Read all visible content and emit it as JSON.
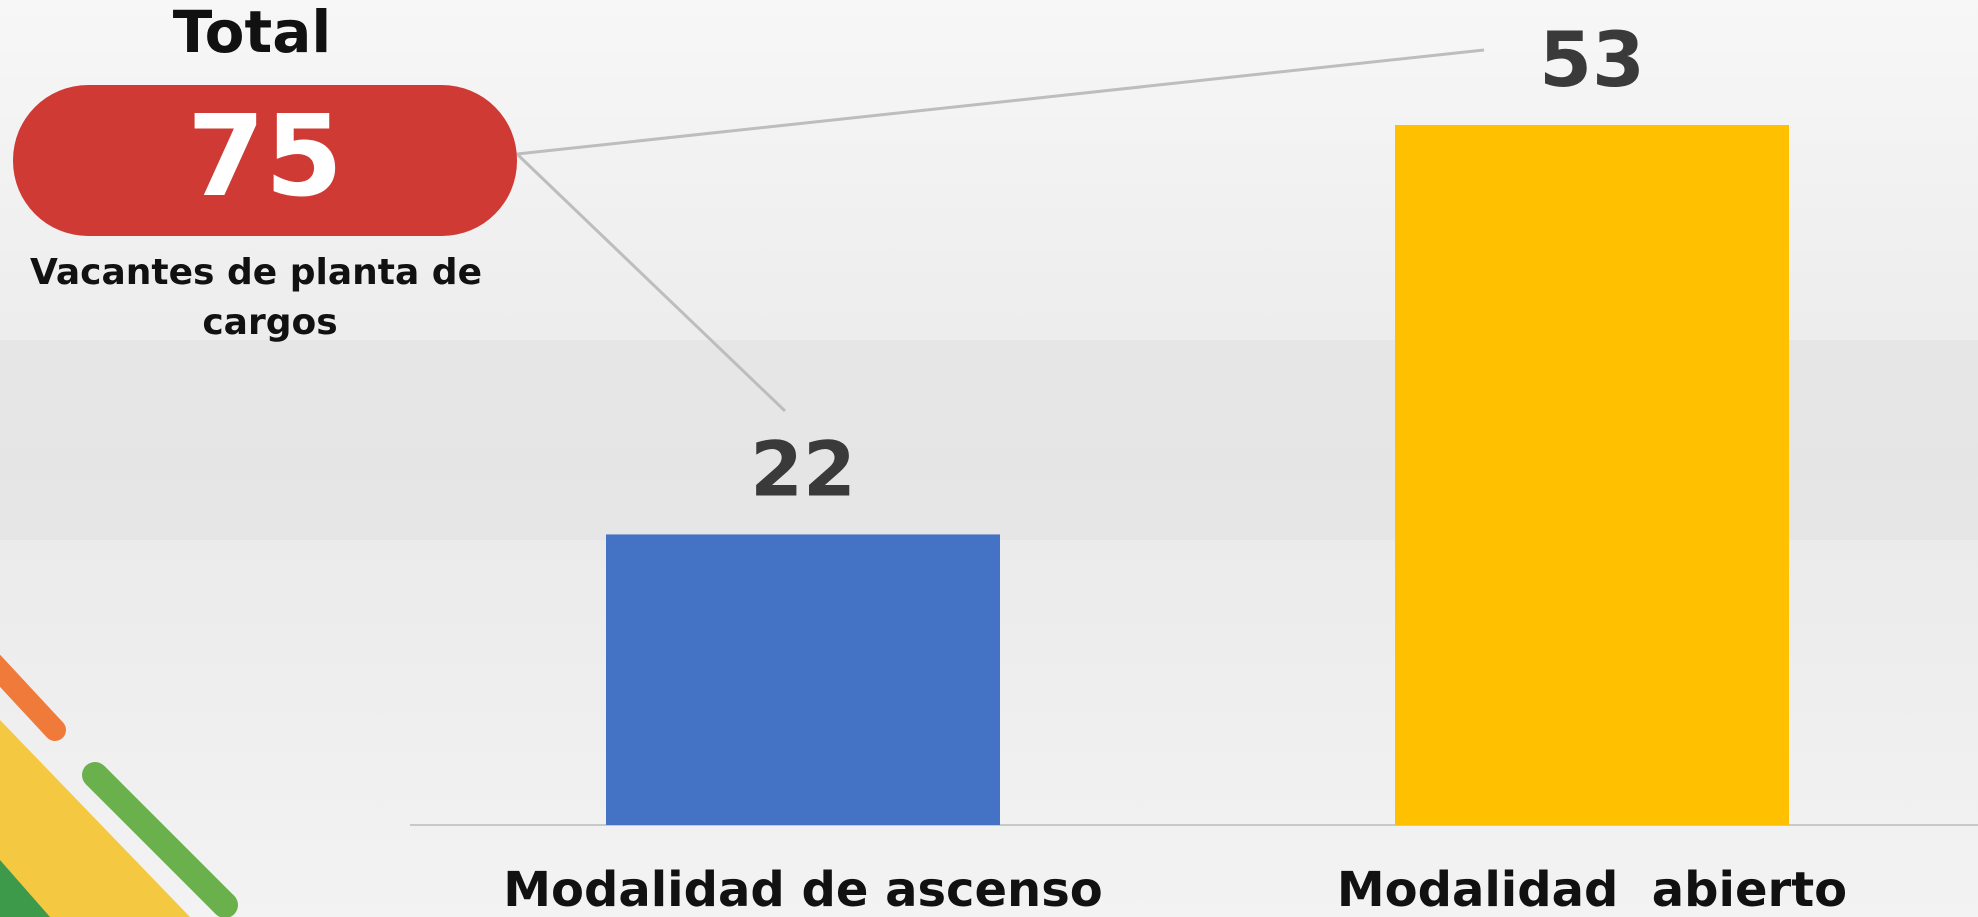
{
  "chart_data": {
    "type": "bar",
    "total_title": "Total",
    "total": 75,
    "total_caption": [
      "Vacantes de planta de",
      "cargos"
    ],
    "categories": [
      "Modalidad de ascenso",
      "Modalidad  abierto"
    ],
    "values": [
      22,
      53
    ],
    "colors": [
      "#4472c4",
      "#ffc000"
    ]
  }
}
